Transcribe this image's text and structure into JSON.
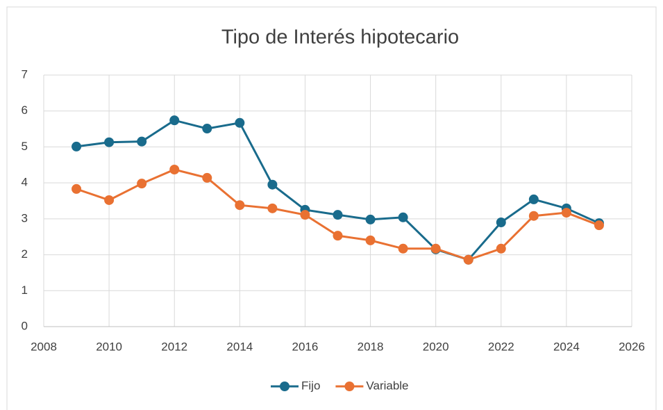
{
  "chart_data": {
    "type": "line",
    "title": "Tipo de Interés hipotecario",
    "x": [
      2009,
      2010,
      2011,
      2012,
      2013,
      2014,
      2015,
      2016,
      2017,
      2018,
      2019,
      2020,
      2021,
      2022,
      2023,
      2024,
      2025
    ],
    "series": [
      {
        "name": "Fijo",
        "color": "#196b8c",
        "values": [
          5.01,
          5.13,
          5.15,
          5.74,
          5.51,
          5.67,
          3.95,
          3.25,
          3.11,
          2.98,
          3.04,
          2.15,
          1.86,
          2.9,
          3.54,
          3.29,
          2.88
        ]
      },
      {
        "name": "Variable",
        "color": "#e97132",
        "values": [
          3.83,
          3.52,
          3.98,
          4.37,
          4.14,
          3.38,
          3.29,
          3.11,
          2.53,
          2.4,
          2.17,
          2.17,
          1.86,
          2.17,
          3.08,
          3.17,
          2.82
        ]
      }
    ],
    "xlim": [
      2008,
      2026
    ],
    "xticks": [
      2008,
      2010,
      2012,
      2014,
      2016,
      2018,
      2020,
      2022,
      2024,
      2026
    ],
    "ylim": [
      0,
      7
    ],
    "yticks": [
      0,
      1,
      2,
      3,
      4,
      5,
      6,
      7
    ],
    "grid": true,
    "legend": "bottom"
  }
}
